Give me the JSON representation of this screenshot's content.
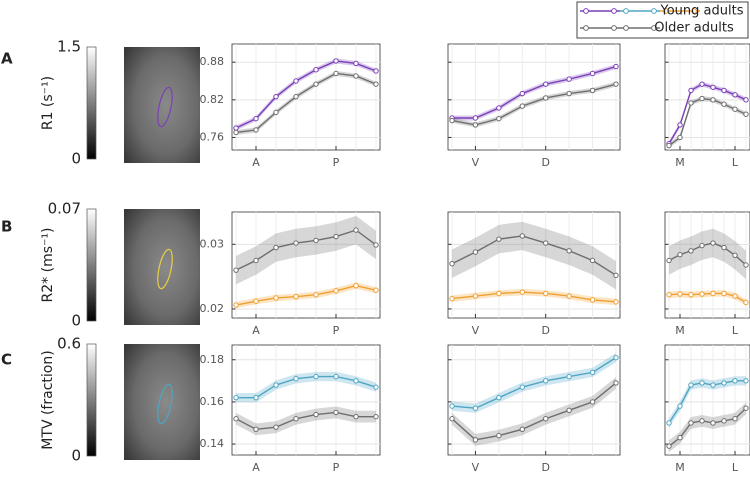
{
  "rows": [
    {
      "label": "A",
      "colorbar_label": "R1 (s⁻¹)",
      "colorbar_ticks": [
        0,
        1.5
      ]
    },
    {
      "label": "B",
      "colorbar_label": "R2* (ms⁻¹)",
      "colorbar_ticks": [
        0,
        0.07
      ]
    },
    {
      "label": "C",
      "colorbar_label": "MTV (fraction)",
      "colorbar_ticks": [
        0,
        0.6
      ]
    }
  ],
  "chart_data": [
    {
      "type": "line",
      "categories": [
        null,
        "A",
        null,
        null,
        null,
        "P",
        null,
        null
      ],
      "ylim": [
        0.74,
        0.909
      ],
      "yticks": [
        0.76,
        0.82,
        0.88
      ],
      "show_ytick_labels": true,
      "grid": true,
      "series": [
        {
          "name": "Young adults",
          "color": "#7b3fb8",
          "values": [
            0.775,
            0.79,
            0.825,
            0.85,
            0.868,
            0.882,
            0.878,
            0.866
          ],
          "error": 0.004
        },
        {
          "name": "Older adults",
          "color": "#6e6e6e",
          "values": [
            0.768,
            0.772,
            0.8,
            0.825,
            0.845,
            0.862,
            0.858,
            0.845
          ],
          "error": 0.004
        }
      ]
    },
    {
      "type": "line",
      "categories": [
        null,
        "V",
        null,
        null,
        "D",
        null,
        null,
        null
      ],
      "ylim": [
        0.74,
        0.909
      ],
      "yticks": [
        0.76,
        0.82,
        0.88
      ],
      "show_ytick_labels": false,
      "grid": true,
      "series": [
        {
          "name": "Young adults",
          "color": "#7b3fb8",
          "values": [
            0.791,
            0.791,
            0.807,
            0.83,
            0.845,
            0.853,
            0.862,
            0.873
          ],
          "error": 0.004
        },
        {
          "name": "Older adults",
          "color": "#6e6e6e",
          "values": [
            0.787,
            0.78,
            0.79,
            0.81,
            0.823,
            0.83,
            0.835,
            0.845
          ],
          "error": 0.004
        }
      ]
    },
    {
      "type": "line",
      "categories": [
        null,
        "M",
        null,
        null,
        null,
        null,
        "L",
        null
      ],
      "ylim": [
        0.74,
        0.909
      ],
      "yticks": [
        0.76,
        0.82,
        0.88
      ],
      "show_ytick_labels": false,
      "grid": true,
      "series": [
        {
          "name": "Young adults",
          "color": "#7b3fb8",
          "values": [
            0.75,
            0.78,
            0.835,
            0.845,
            0.84,
            0.835,
            0.828,
            0.82
          ],
          "error": 0.004
        },
        {
          "name": "Older adults",
          "color": "#6e6e6e",
          "values": [
            0.747,
            0.76,
            0.815,
            0.822,
            0.82,
            0.813,
            0.805,
            0.797
          ],
          "error": 0.004
        }
      ]
    },
    {
      "type": "line",
      "categories": [
        null,
        "A",
        null,
        null,
        null,
        "P",
        null,
        null
      ],
      "ylim": [
        0.0186,
        0.035
      ],
      "yticks": [
        0.02,
        0.03
      ],
      "show_ytick_labels": true,
      "grid": true,
      "series": [
        {
          "name": "Young adults",
          "color": "#f0a030",
          "values": [
            0.0206,
            0.0212,
            0.0217,
            0.0219,
            0.0222,
            0.0228,
            0.0236,
            0.0229
          ],
          "error": 0.0005
        },
        {
          "name": "Older adults",
          "color": "#6e6e6e",
          "values": [
            0.026,
            0.0275,
            0.0295,
            0.0302,
            0.0306,
            0.0312,
            0.0322,
            0.0299
          ],
          "error": 0.0022
        }
      ]
    },
    {
      "type": "line",
      "categories": [
        null,
        "V",
        null,
        null,
        "D",
        null,
        null,
        null
      ],
      "ylim": [
        0.0186,
        0.035
      ],
      "yticks": [
        0.02,
        0.03
      ],
      "show_ytick_labels": false,
      "grid": true,
      "series": [
        {
          "name": "Young adults",
          "color": "#f0a030",
          "values": [
            0.0216,
            0.022,
            0.0224,
            0.0226,
            0.0224,
            0.022,
            0.0214,
            0.0211
          ],
          "error": 0.0005
        },
        {
          "name": "Older adults",
          "color": "#6e6e6e",
          "values": [
            0.027,
            0.0288,
            0.0308,
            0.0313,
            0.0302,
            0.029,
            0.0275,
            0.0252
          ],
          "error": 0.0022
        }
      ]
    },
    {
      "type": "line",
      "categories": [
        null,
        "M",
        null,
        null,
        null,
        null,
        "L",
        null
      ],
      "ylim": [
        0.0186,
        0.035
      ],
      "yticks": [
        0.02,
        0.03
      ],
      "show_ytick_labels": false,
      "grid": true,
      "series": [
        {
          "name": "Young adults",
          "color": "#f0a030",
          "values": [
            0.0222,
            0.0223,
            0.0222,
            0.0223,
            0.0224,
            0.0224,
            0.022,
            0.021
          ],
          "error": 0.0005
        },
        {
          "name": "Older adults",
          "color": "#6e6e6e",
          "values": [
            0.0275,
            0.0284,
            0.029,
            0.0298,
            0.0302,
            0.0295,
            0.0283,
            0.0268
          ],
          "error": 0.0022
        }
      ]
    },
    {
      "type": "line",
      "categories": [
        null,
        "A",
        null,
        null,
        null,
        "P",
        null,
        null
      ],
      "ylim": [
        0.1348,
        0.187
      ],
      "yticks": [
        0.14,
        0.16,
        0.18
      ],
      "show_ytick_labels": true,
      "grid": true,
      "series": [
        {
          "name": "Young adults",
          "color": "#4ea6c4",
          "values": [
            0.162,
            0.162,
            0.168,
            0.171,
            0.172,
            0.172,
            0.17,
            0.167
          ],
          "error": 0.0022
        },
        {
          "name": "Older adults",
          "color": "#6e6e6e",
          "values": [
            0.152,
            0.147,
            0.148,
            0.152,
            0.154,
            0.155,
            0.153,
            0.153
          ],
          "error": 0.0028
        }
      ]
    },
    {
      "type": "line",
      "categories": [
        null,
        "V",
        null,
        null,
        "D",
        null,
        null,
        null
      ],
      "ylim": [
        0.1348,
        0.187
      ],
      "yticks": [
        0.14,
        0.16,
        0.18
      ],
      "show_ytick_labels": false,
      "grid": true,
      "series": [
        {
          "name": "Young adults",
          "color": "#4ea6c4",
          "values": [
            0.158,
            0.157,
            0.162,
            0.167,
            0.17,
            0.172,
            0.174,
            0.181
          ],
          "error": 0.0022
        },
        {
          "name": "Older adults",
          "color": "#6e6e6e",
          "values": [
            0.152,
            0.142,
            0.144,
            0.147,
            0.152,
            0.156,
            0.16,
            0.169
          ],
          "error": 0.0028
        }
      ]
    },
    {
      "type": "line",
      "categories": [
        null,
        "M",
        null,
        null,
        null,
        null,
        "L",
        null
      ],
      "ylim": [
        0.1348,
        0.187
      ],
      "yticks": [
        0.14,
        0.16,
        0.18
      ],
      "show_ytick_labels": false,
      "grid": true,
      "series": [
        {
          "name": "Young adults",
          "color": "#4ea6c4",
          "values": [
            0.15,
            0.158,
            0.168,
            0.169,
            0.168,
            0.169,
            0.17,
            0.17
          ],
          "error": 0.0022
        },
        {
          "name": "Older adults",
          "color": "#6e6e6e",
          "values": [
            0.139,
            0.143,
            0.15,
            0.151,
            0.15,
            0.151,
            0.152,
            0.157
          ],
          "error": 0.0028
        }
      ]
    }
  ]
}
